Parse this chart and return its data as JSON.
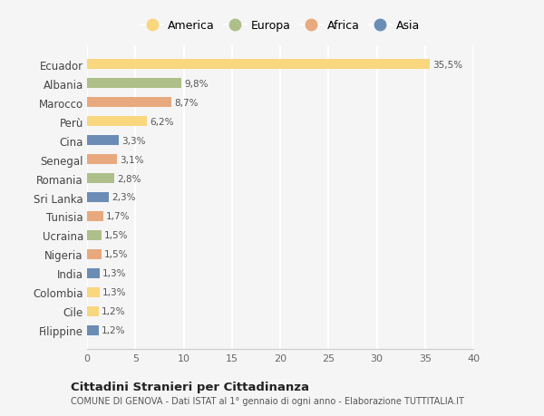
{
  "countries": [
    "Ecuador",
    "Albania",
    "Marocco",
    "Perù",
    "Cina",
    "Senegal",
    "Romania",
    "Sri Lanka",
    "Tunisia",
    "Ucraina",
    "Nigeria",
    "India",
    "Colombia",
    "Cile",
    "Filippine"
  ],
  "values": [
    35.5,
    9.8,
    8.7,
    6.2,
    3.3,
    3.1,
    2.8,
    2.3,
    1.7,
    1.5,
    1.5,
    1.3,
    1.3,
    1.2,
    1.2
  ],
  "labels": [
    "35,5%",
    "9,8%",
    "8,7%",
    "6,2%",
    "3,3%",
    "3,1%",
    "2,8%",
    "2,3%",
    "1,7%",
    "1,5%",
    "1,5%",
    "1,3%",
    "1,3%",
    "1,2%",
    "1,2%"
  ],
  "colors": [
    "#F9D77E",
    "#AEBF8A",
    "#E8A97E",
    "#F9D77E",
    "#6B8DB5",
    "#E8A97E",
    "#AEBF8A",
    "#6B8DB5",
    "#E8A97E",
    "#AEBF8A",
    "#E8A97E",
    "#6B8DB5",
    "#F9D77E",
    "#F9D77E",
    "#6B8DB5"
  ],
  "legend_labels": [
    "America",
    "Europa",
    "Africa",
    "Asia"
  ],
  "legend_colors": [
    "#F9D77E",
    "#AEBF8A",
    "#E8A97E",
    "#6B8DB5"
  ],
  "xlim": [
    0,
    40
  ],
  "xticks": [
    0,
    5,
    10,
    15,
    20,
    25,
    30,
    35,
    40
  ],
  "title": "Cittadini Stranieri per Cittadinanza",
  "subtitle": "COMUNE DI GENOVA - Dati ISTAT al 1° gennaio di ogni anno - Elaborazione TUTTITALIA.IT",
  "bg_color": "#f5f5f5",
  "grid_color": "#ffffff",
  "bar_height": 0.55
}
